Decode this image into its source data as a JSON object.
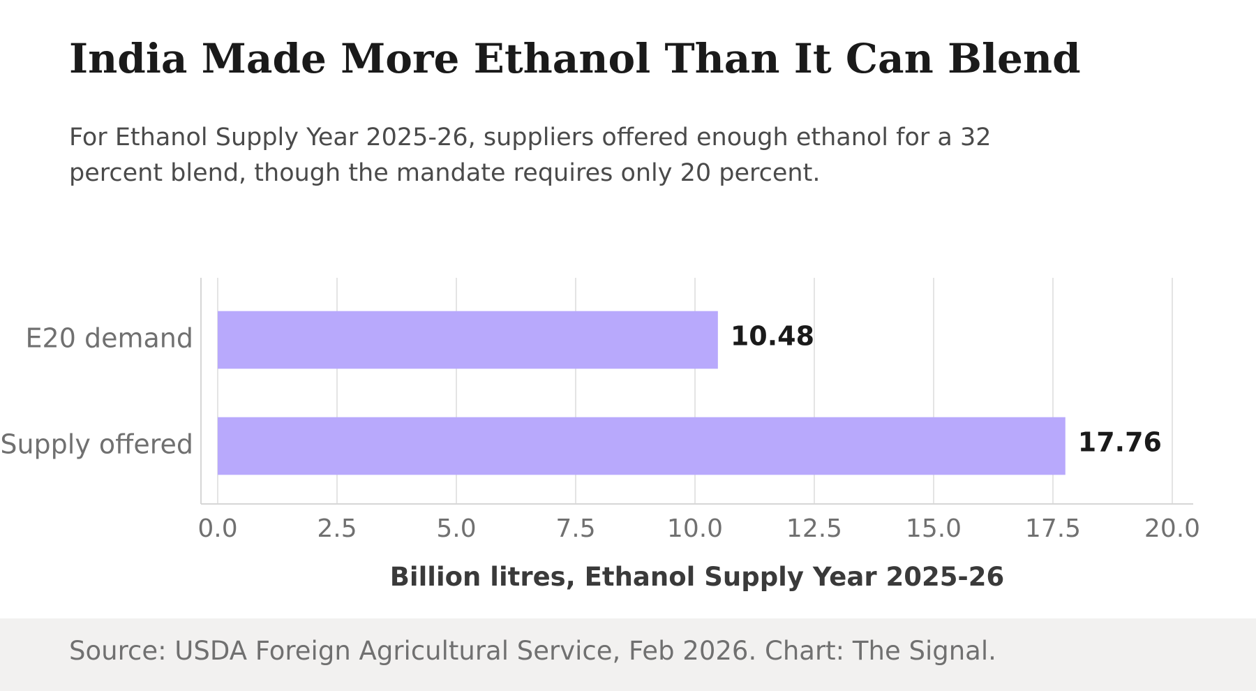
{
  "chart_data": {
    "type": "bar",
    "orientation": "horizontal",
    "title": "India Made More Ethanol Than It Can Blend",
    "subtitle": "For Ethanol Supply Year 2025-26, suppliers offered enough ethanol for a 32 percent blend, though the mandate requires only 20 percent.",
    "categories": [
      "E20 demand",
      "Supply offered"
    ],
    "values": [
      10.48,
      17.76
    ],
    "value_labels": [
      "10.48",
      "17.76"
    ],
    "xlabel": "Billion litres, Ethanol Supply Year 2025-26",
    "ylabel": "",
    "xlim": [
      0,
      20
    ],
    "xticks": [
      0,
      2.5,
      5,
      7.5,
      10,
      12.5,
      15,
      17.5,
      20
    ],
    "xtick_labels": [
      "0.0",
      "2.5",
      "5.0",
      "7.5",
      "10.0",
      "12.5",
      "15.0",
      "17.5",
      "20.0"
    ],
    "grid": "vertical",
    "bar_color": "#b8a9fc",
    "source": "Source: USDA Foreign Agricultural Service, Feb 2026. Chart: The Signal."
  }
}
